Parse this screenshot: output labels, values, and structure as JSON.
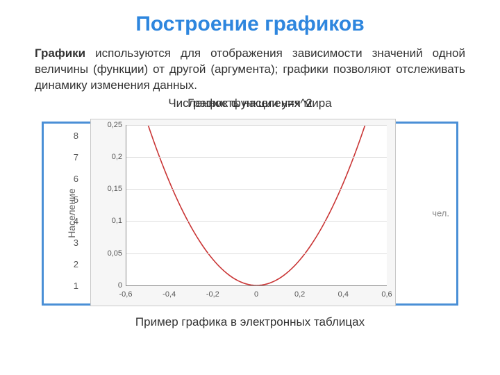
{
  "title": {
    "text": "Построение графиков",
    "color": "#2e86de",
    "fontsize": 30
  },
  "paragraph": {
    "lead": "Графики",
    "rest": " используются для отображения зависимости значений одной величины (функции) от другой (аргумента); графики позволяют отслеживать динамику изменения данных.",
    "fontsize": 17,
    "color": "#333333"
  },
  "overlapping_titles": {
    "back": "Численность населения мира",
    "front": "График функции у=х^2",
    "fontsize": 17,
    "color": "#000000"
  },
  "back_chart": {
    "border_color": "#4a8fd6",
    "y_axis_label": "Население",
    "y_ticks": [
      "8",
      "7",
      "6",
      "5",
      "4",
      "3",
      "2",
      "1"
    ],
    "right_label": "чел.",
    "tick_fontsize": 13
  },
  "front_chart": {
    "type": "line",
    "background": "#f6f6f6",
    "plot_background": "#ffffff",
    "grid_color": "#dddddd",
    "axis_color": "#888888",
    "line_color": "#c93434",
    "line_width": 1.6,
    "xlim": [
      -0.6,
      0.6
    ],
    "ylim": [
      0,
      0.25
    ],
    "y_ticks": [
      0,
      0.05,
      0.1,
      0.15,
      0.2,
      0.25
    ],
    "x_ticks": [
      -0.6,
      -0.4,
      -0.2,
      0,
      0.2,
      0.4,
      0.6
    ],
    "y_tick_labels": [
      "0",
      "0,05",
      "0,1",
      "0,15",
      "0,2",
      "0,25"
    ],
    "x_tick_labels": [
      "-0,6",
      "-0,4",
      "-0,2",
      "0",
      "0,2",
      "0,4",
      "0,6"
    ],
    "tick_fontsize": 11
  },
  "caption": {
    "text": "Пример графика в электронных таблицах",
    "fontsize": 17
  }
}
